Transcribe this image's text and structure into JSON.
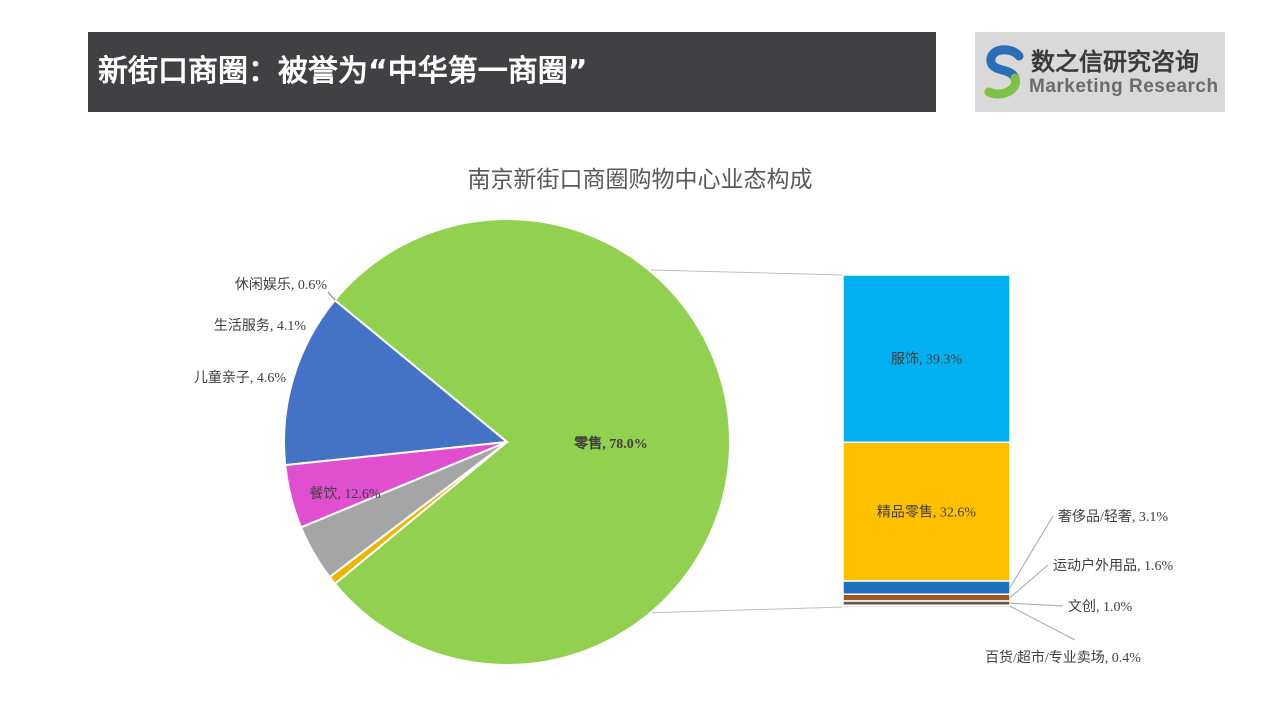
{
  "header": {
    "title": "新街口商圈：被誉为“中华第一商圈”"
  },
  "logo": {
    "name_cn": "数之信研究咨询",
    "name_en": "Marketing  Research"
  },
  "chart_data": {
    "type": "bar-of-pie",
    "title": "南京新街口商圈购物中心业态构成",
    "pie": {
      "slices": [
        {
          "name": "零售",
          "value": 78.0,
          "label": "零售, 78.0%",
          "color": "#92d050"
        },
        {
          "name": "餐饮",
          "value": 12.6,
          "label": "餐饮, 12.6%",
          "color": "#4472c4"
        },
        {
          "name": "儿童亲子",
          "value": 4.6,
          "label": "儿童亲子, 4.6%",
          "color": "#e04fcf"
        },
        {
          "name": "生活服务",
          "value": 4.1,
          "label": "生活服务, 4.1%",
          "color": "#a5a5a5"
        },
        {
          "name": "休闲娱乐",
          "value": 0.6,
          "label": "休闲娱乐, 0.6%",
          "color": "#f0b400"
        }
      ]
    },
    "bar": {
      "segments": [
        {
          "name": "服饰",
          "value": 39.3,
          "label": "服饰, 39.3%",
          "color": "#00b0f0"
        },
        {
          "name": "精品零售",
          "value": 32.6,
          "label": "精品零售, 32.6%",
          "color": "#ffc000"
        },
        {
          "name": "奢侈品/轻奢",
          "value": 3.1,
          "label": "奢侈品/轻奢, 3.1%",
          "color": "#1f6fbf"
        },
        {
          "name": "运动户外用品",
          "value": 1.6,
          "label": "运动户外用品, 1.6%",
          "color": "#9e5a1e"
        },
        {
          "name": "文创",
          "value": 1.0,
          "label": "文创, 1.0%",
          "color": "#5a5a5a"
        },
        {
          "name": "百货/超市/专业卖场",
          "value": 0.4,
          "label": "百货/超市/专业卖场, 0.4%",
          "color": "#b87333"
        }
      ]
    }
  }
}
